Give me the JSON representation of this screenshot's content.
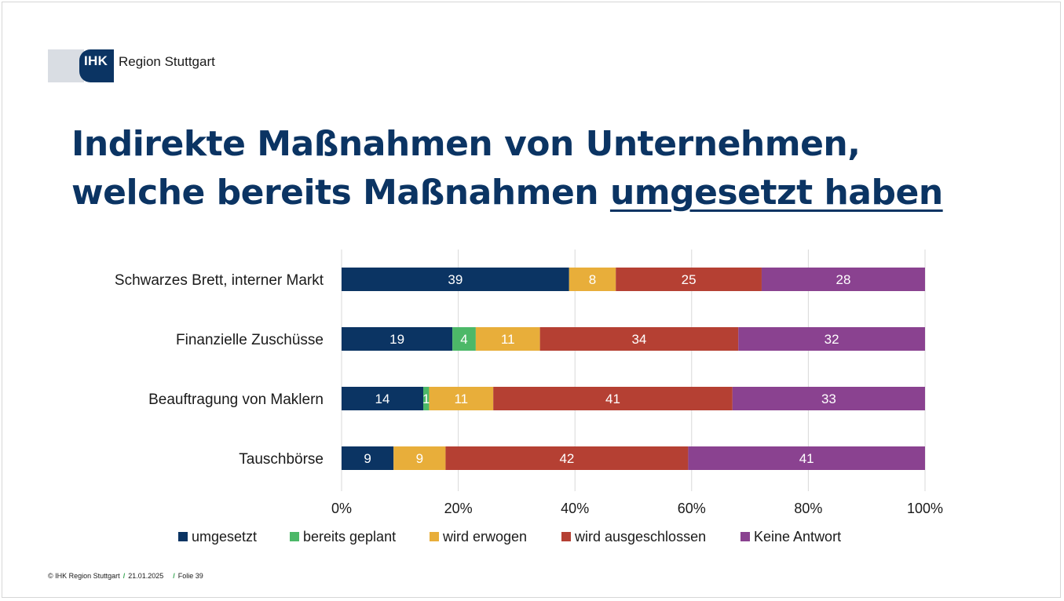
{
  "logo": {
    "mark": "IHK",
    "text": "Region Stuttgart"
  },
  "title": {
    "part1": "Indirekte Maßnahmen von Unternehmen, welche bereits Maßnahmen ",
    "underlined": "umgesetzt haben"
  },
  "chart_data": {
    "type": "bar",
    "orientation": "horizontal",
    "stacked": true,
    "categories": [
      "Schwarzes Brett, interner Markt",
      "Finanzielle Zuschüsse",
      "Beauftragung von Maklern",
      "Tauschbörse"
    ],
    "series": [
      {
        "name": "umgesetzt",
        "color": "#0b3463",
        "values": [
          39,
          19,
          14,
          9
        ]
      },
      {
        "name": "bereits geplant",
        "color": "#4cb868",
        "values": [
          0,
          4,
          1,
          0
        ]
      },
      {
        "name": "wird erwogen",
        "color": "#e8ae3a",
        "values": [
          8,
          11,
          11,
          9
        ]
      },
      {
        "name": "wird ausgeschlossen",
        "color": "#b54033",
        "values": [
          25,
          34,
          41,
          42
        ]
      },
      {
        "name": "Keine Antwort",
        "color": "#8a4290",
        "values": [
          28,
          32,
          33,
          41
        ]
      }
    ],
    "xlim": [
      0,
      100
    ],
    "xticks": [
      "0%",
      "20%",
      "40%",
      "60%",
      "80%",
      "100%"
    ],
    "grid": true,
    "legend": "bottom"
  },
  "footer": {
    "copyright": "© IHK Region Stuttgart",
    "date": "21.01.2025",
    "slide": "Folie 39"
  }
}
